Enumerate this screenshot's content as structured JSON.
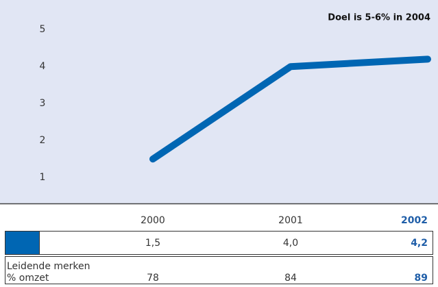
{
  "chart_data": {
    "type": "line",
    "annotation": "Doel is 5-6% in 2004",
    "categories": [
      "2000",
      "2001",
      "2002"
    ],
    "series": [
      {
        "color": "#0066b3",
        "values": [
          1.5,
          4.0,
          4.2
        ],
        "value_labels": [
          "1,5",
          "4,0",
          "4,2"
        ]
      }
    ],
    "ylim": [
      0.3,
      5.8
    ],
    "yticks": [
      1,
      2,
      3,
      4,
      5
    ],
    "background": "#e1e6f4"
  },
  "table": {
    "row_label": [
      "Leidende merken",
      "% omzet"
    ],
    "values": [
      78,
      84,
      89
    ]
  }
}
